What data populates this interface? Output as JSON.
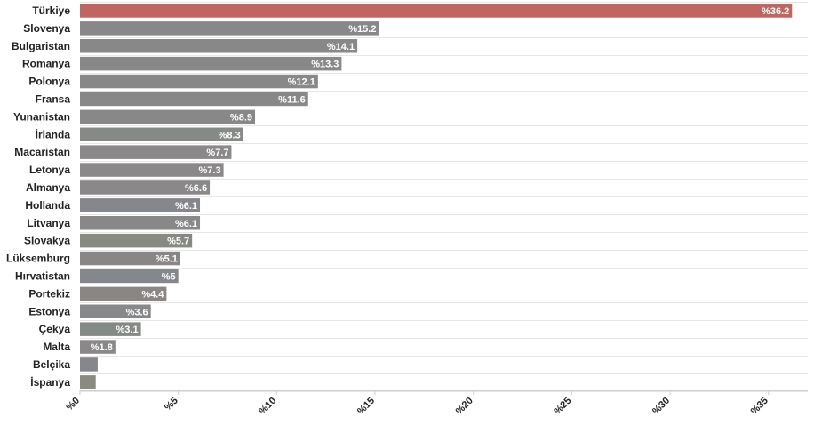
{
  "chart_data": {
    "type": "bar",
    "orientation": "horizontal",
    "grid": true,
    "xlim": [
      0,
      37
    ],
    "ticks": [
      {
        "value": 0,
        "label": "%0"
      },
      {
        "value": 5,
        "label": "%5"
      },
      {
        "value": 10,
        "label": "%10"
      },
      {
        "value": 15,
        "label": "%15"
      },
      {
        "value": 20,
        "label": "%20"
      },
      {
        "value": 25,
        "label": "%25"
      },
      {
        "value": 30,
        "label": "%30"
      },
      {
        "value": 35,
        "label": "%35"
      }
    ],
    "bars": [
      {
        "category": "Türkiye",
        "value": 36.2,
        "label": "%36.2",
        "color": "#c0655f"
      },
      {
        "category": "Slovenya",
        "value": 15.2,
        "label": "%15.2",
        "color": "#888888"
      },
      {
        "category": "Bulgaristan",
        "value": 14.1,
        "label": "%14.1",
        "color": "#888888"
      },
      {
        "category": "Romanya",
        "value": 13.3,
        "label": "%13.3",
        "color": "#888888"
      },
      {
        "category": "Polonya",
        "value": 12.1,
        "label": "%12.1",
        "color": "#888888"
      },
      {
        "category": "Fransa",
        "value": 11.6,
        "label": "%11.6",
        "color": "#888888"
      },
      {
        "category": "Yunanistan",
        "value": 8.9,
        "label": "%8.9",
        "color": "#888888"
      },
      {
        "category": "İrlanda",
        "value": 8.3,
        "label": "%8.3",
        "color": "#868a86"
      },
      {
        "category": "Macaristan",
        "value": 7.7,
        "label": "%7.7",
        "color": "#8a8888"
      },
      {
        "category": "Letonya",
        "value": 7.3,
        "label": "%7.3",
        "color": "#8a8888"
      },
      {
        "category": "Almanya",
        "value": 6.6,
        "label": "%6.6",
        "color": "#8a8888"
      },
      {
        "category": "Hollanda",
        "value": 6.1,
        "label": "%6.1",
        "color": "#84888c"
      },
      {
        "category": "Litvanya",
        "value": 6.1,
        "label": "%6.1",
        "color": "#888888"
      },
      {
        "category": "Slovakya",
        "value": 5.7,
        "label": "%5.7",
        "color": "#868a80"
      },
      {
        "category": "Lüksemburg",
        "value": 5.1,
        "label": "%5.1",
        "color": "#8a8688"
      },
      {
        "category": "Hırvatistan",
        "value": 5.0,
        "label": "%5",
        "color": "#84888c"
      },
      {
        "category": "Portekiz",
        "value": 4.4,
        "label": "%4.4",
        "color": "#8a8683"
      },
      {
        "category": "Estonya",
        "value": 3.6,
        "label": "%3.6",
        "color": "#86888a"
      },
      {
        "category": "Çekya",
        "value": 3.1,
        "label": "%3.1",
        "color": "#848a86"
      },
      {
        "category": "Malta",
        "value": 1.8,
        "label": "%1.8",
        "color": "#8a8888"
      },
      {
        "category": "Belçika",
        "value": 0.9,
        "label": "",
        "color": "#84888c"
      },
      {
        "category": "İspanya",
        "value": 0.8,
        "label": "",
        "color": "#8a8a80"
      }
    ]
  }
}
